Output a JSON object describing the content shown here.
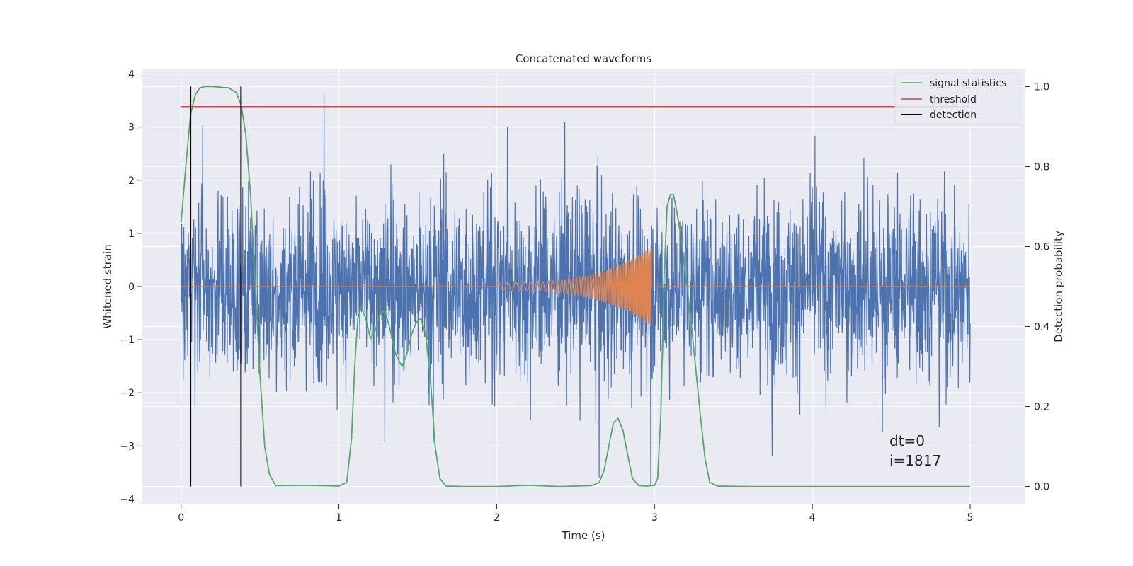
{
  "chart_data": {
    "type": "line",
    "title": "Concatenated waveforms",
    "xlabel": "Time (s)",
    "ylabel": "Whitened strain",
    "y2label": "Detection probability",
    "xlim": [
      -0.25,
      5.35
    ],
    "ylim": [
      -4.1,
      4.1
    ],
    "y2lim": [
      -0.045,
      1.045
    ],
    "xticks": [
      0,
      1,
      2,
      3,
      4,
      5
    ],
    "yticks": [
      -4,
      -3,
      -2,
      -1,
      0,
      1,
      2,
      3,
      4
    ],
    "y2ticks": [
      0.0,
      0.2,
      0.4,
      0.6,
      0.8,
      1.0
    ],
    "y2ticklabels": [
      "0.0",
      "0.2",
      "0.4",
      "0.6",
      "0.8",
      "1.0"
    ],
    "grid": true,
    "legend_position": "top-right",
    "colors": {
      "background": "#eaeaf2",
      "grid": "#ffffff",
      "noise": "#4c72b0",
      "chirp": "#dd8452",
      "signal_statistics": "#55a868",
      "threshold": "#c44e52",
      "detection": "#000000"
    },
    "noise": {
      "x_range": [
        0,
        5
      ],
      "typical_band": [
        -1.2,
        1.2
      ],
      "max": 3.75,
      "min": -3.75
    },
    "chirp": {
      "x_start": 2.0,
      "x_end": 2.98,
      "max_amplitude": 0.75
    },
    "series": [
      {
        "name": "signal statistics",
        "axis": "right",
        "x": [
          0.0,
          0.03,
          0.06,
          0.09,
          0.12,
          0.15,
          0.2,
          0.3,
          0.35,
          0.38,
          0.41,
          0.44,
          0.47,
          0.5,
          0.53,
          0.56,
          0.6,
          0.8,
          1.0,
          1.05,
          1.08,
          1.1,
          1.12,
          1.14,
          1.17,
          1.2,
          1.23,
          1.26,
          1.29,
          1.32,
          1.36,
          1.4,
          1.43,
          1.46,
          1.49,
          1.52,
          1.55,
          1.58,
          1.61,
          1.64,
          1.68,
          1.8,
          2.0,
          2.2,
          2.4,
          2.6,
          2.65,
          2.68,
          2.71,
          2.74,
          2.77,
          2.8,
          2.83,
          2.86,
          2.9,
          2.95,
          3.0,
          3.02,
          3.04,
          3.06,
          3.08,
          3.1,
          3.12,
          3.14,
          3.17,
          3.2,
          3.23,
          3.26,
          3.29,
          3.32,
          3.35,
          3.4,
          3.6,
          4.0,
          4.5,
          5.0
        ],
        "y": [
          0.66,
          0.8,
          0.93,
          0.98,
          0.997,
          1.0,
          1.0,
          0.997,
          0.985,
          0.955,
          0.88,
          0.73,
          0.5,
          0.28,
          0.1,
          0.03,
          0.002,
          0.003,
          0.001,
          0.01,
          0.12,
          0.3,
          0.42,
          0.45,
          0.42,
          0.37,
          0.39,
          0.43,
          0.44,
          0.4,
          0.33,
          0.3,
          0.33,
          0.38,
          0.41,
          0.42,
          0.38,
          0.27,
          0.1,
          0.02,
          0.001,
          0.0,
          0.0,
          0.003,
          0.0,
          0.002,
          0.01,
          0.04,
          0.1,
          0.16,
          0.17,
          0.14,
          0.08,
          0.02,
          0.002,
          0.001,
          0.003,
          0.02,
          0.18,
          0.52,
          0.7,
          0.73,
          0.73,
          0.69,
          0.62,
          0.52,
          0.42,
          0.3,
          0.18,
          0.07,
          0.01,
          0.001,
          0.0,
          0.0,
          0.0,
          0.0
        ]
      },
      {
        "name": "threshold",
        "axis": "right",
        "x": [
          0,
          5
        ],
        "y": [
          0.95,
          0.95
        ]
      },
      {
        "name": "detection",
        "axis": "right",
        "x": [
          0.06,
          0.38
        ],
        "y": [
          0,
          1
        ]
      }
    ],
    "annotations": [
      "dt=0",
      "i=1817"
    ]
  }
}
